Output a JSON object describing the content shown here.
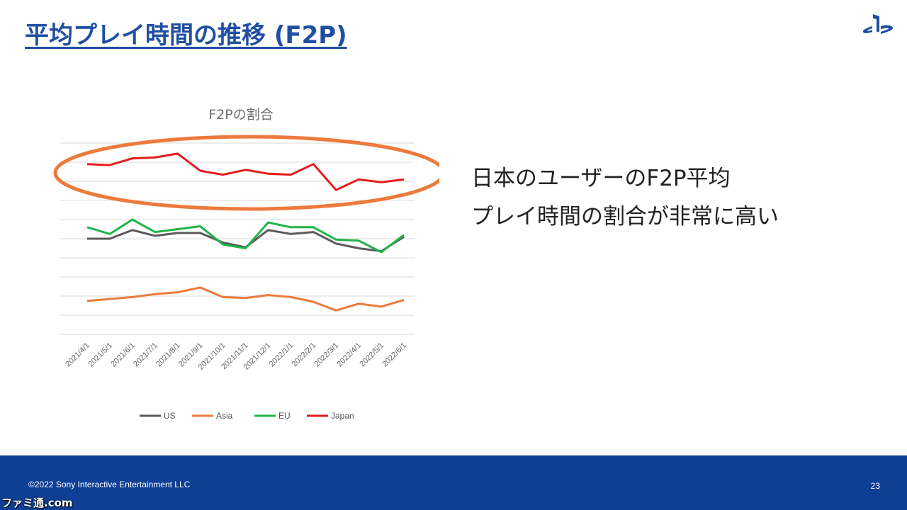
{
  "slide": {
    "title": "平均プレイ時間の推移 (F2P)",
    "callout_lines": [
      "日本のユーザーのF2P平均",
      "プレイ時間の割合が非常に高い"
    ],
    "copyright": "©2022 Sony Interactive Entertainment LLC",
    "page_number": "23",
    "watermark": "ファミ通.com",
    "logo": "playstation-logo",
    "colors": {
      "title": "#1f4fa3",
      "footer": "#0e3f95",
      "highlight_ellipse": "#ec7a3c"
    }
  },
  "chart_data": {
    "type": "line",
    "title": "F2Pの割合",
    "categories": [
      "2021/4/1",
      "2021/5/1",
      "2021/6/1",
      "2021/7/1",
      "2021/8/1",
      "2021/9/1",
      "2021/10/1",
      "2021/11/1",
      "2021/12/1",
      "2022/1/1",
      "2022/2/1",
      "2022/3/1",
      "2022/4/1",
      "2022/5/1",
      "2022/6/1"
    ],
    "ylim": [
      0,
      10
    ],
    "y_tick_labels_shown": false,
    "grid": true,
    "legend_position": "bottom",
    "series": [
      {
        "name": "US",
        "color": "#5a5a5a",
        "values": [
          5.0,
          5.0,
          5.45,
          5.15,
          5.3,
          5.3,
          4.8,
          4.55,
          5.45,
          5.25,
          5.35,
          4.75,
          4.5,
          4.35,
          5.1
        ]
      },
      {
        "name": "Asia",
        "color": "#ec7a3c",
        "values": [
          1.75,
          1.85,
          1.95,
          2.1,
          2.2,
          2.45,
          1.95,
          1.9,
          2.05,
          1.95,
          1.7,
          1.25,
          1.6,
          1.45,
          1.8
        ]
      },
      {
        "name": "EU",
        "color": "#20b44b",
        "values": [
          5.6,
          5.25,
          6.0,
          5.35,
          5.5,
          5.65,
          4.7,
          4.5,
          5.85,
          5.6,
          5.6,
          4.95,
          4.9,
          4.3,
          5.2
        ]
      },
      {
        "name": "Japan",
        "color": "#e51c1c",
        "values": [
          8.9,
          8.85,
          9.2,
          9.25,
          9.45,
          8.55,
          8.35,
          8.6,
          8.4,
          8.35,
          8.9,
          7.55,
          8.1,
          7.95,
          8.1
        ]
      }
    ]
  }
}
